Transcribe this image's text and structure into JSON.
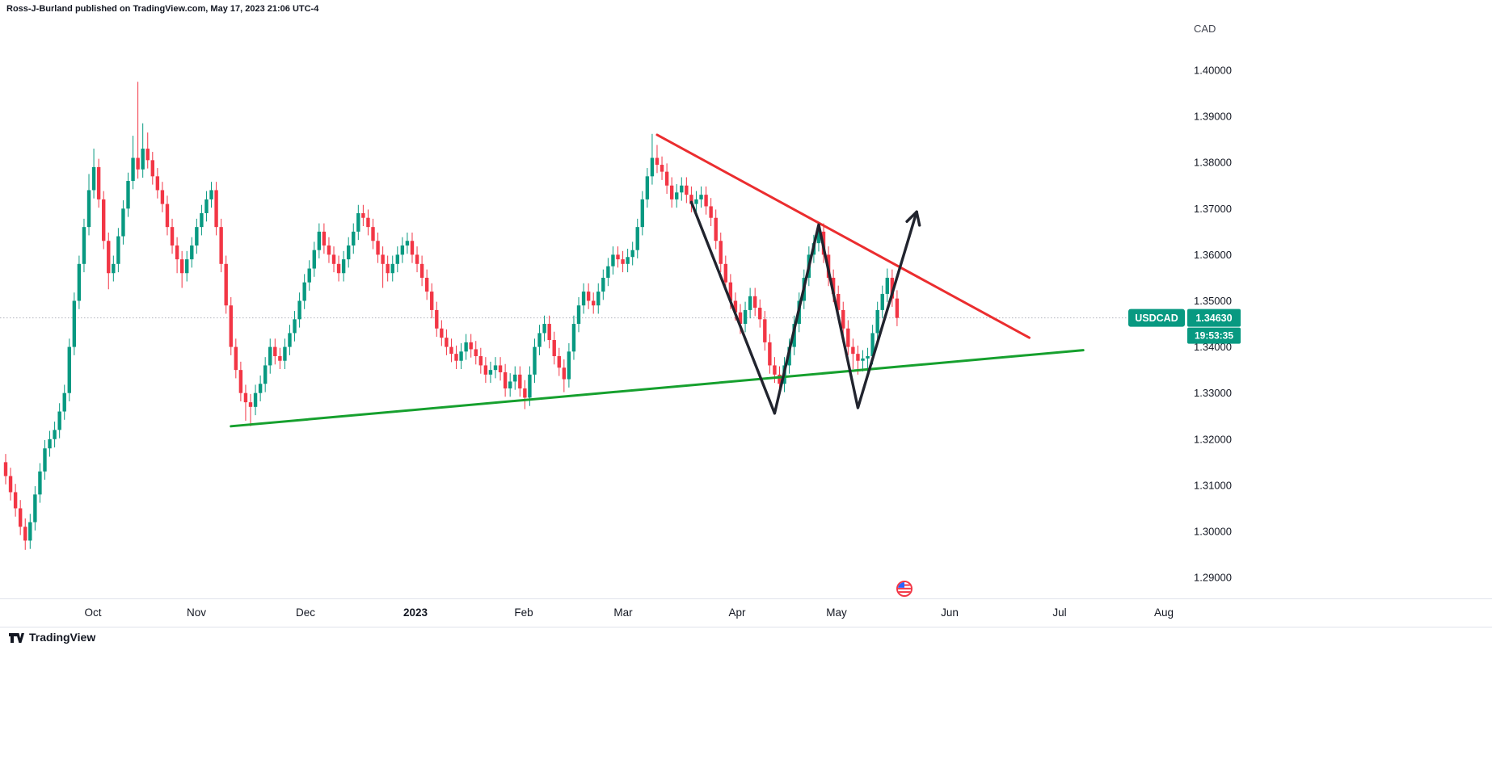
{
  "header": {
    "attribution": "Ross-J-Burland published on TradingView.com, May 17, 2023 21:06 UTC-4"
  },
  "footer": {
    "brand": "TradingView"
  },
  "price_scale": {
    "currency_label": "CAD",
    "ticks": [
      "1.40000",
      "1.39000",
      "1.38000",
      "1.37000",
      "1.36000",
      "1.35000",
      "1.34000",
      "1.33000",
      "1.32000",
      "1.31000",
      "1.30000",
      "1.29000"
    ]
  },
  "time_scale": {
    "labels": [
      {
        "label": "Oct"
      },
      {
        "label": "Nov"
      },
      {
        "label": "Dec"
      },
      {
        "label": "2023",
        "emphasis": true
      },
      {
        "label": "Feb"
      },
      {
        "label": "Mar"
      },
      {
        "label": "Apr"
      },
      {
        "label": "May"
      },
      {
        "label": "Jun"
      },
      {
        "label": "Jul"
      },
      {
        "label": "Aug"
      }
    ]
  },
  "price_label": {
    "symbol": "USDCAD",
    "price": "1.34630",
    "countdown": "19:53:35",
    "color": "#089981"
  },
  "chart_data": {
    "type": "candlestick",
    "symbol": "USDCAD",
    "quote_currency": "CAD",
    "current_price": 1.3463,
    "ylim": [
      1.2854,
      1.4103
    ],
    "y_tick_step": 0.01,
    "grid": false,
    "up_color": "#089981",
    "down_color": "#f23645",
    "candles": [
      [
        1.315,
        1.3168,
        1.3102,
        1.312
      ],
      [
        1.312,
        1.3138,
        1.3067,
        1.3085
      ],
      [
        1.3085,
        1.3103,
        1.3032,
        1.305
      ],
      [
        1.305,
        1.3068,
        1.2992,
        1.301
      ],
      [
        1.301,
        1.3028,
        1.296,
        1.298
      ],
      [
        1.298,
        1.3038,
        1.2962,
        1.302
      ],
      [
        1.302,
        1.3098,
        1.3002,
        1.308
      ],
      [
        1.308,
        1.3148,
        1.3062,
        1.313
      ],
      [
        1.313,
        1.3198,
        1.3112,
        1.318
      ],
      [
        1.318,
        1.3218,
        1.3162,
        1.32
      ],
      [
        1.32,
        1.3238,
        1.3182,
        1.322
      ],
      [
        1.322,
        1.3278,
        1.3202,
        1.326
      ],
      [
        1.326,
        1.3318,
        1.3242,
        1.33
      ],
      [
        1.33,
        1.3418,
        1.3282,
        1.34
      ],
      [
        1.34,
        1.3518,
        1.3382,
        1.35
      ],
      [
        1.35,
        1.3598,
        1.3482,
        1.358
      ],
      [
        1.358,
        1.3678,
        1.3562,
        1.366
      ],
      [
        1.366,
        1.3775,
        1.3642,
        1.374
      ],
      [
        1.374,
        1.383,
        1.3722,
        1.379
      ],
      [
        1.379,
        1.3808,
        1.3702,
        1.372
      ],
      [
        1.372,
        1.3738,
        1.3612,
        1.363
      ],
      [
        1.363,
        1.3648,
        1.3525,
        1.356
      ],
      [
        1.356,
        1.3598,
        1.3542,
        1.358
      ],
      [
        1.358,
        1.3658,
        1.3562,
        1.364
      ],
      [
        1.364,
        1.3718,
        1.3622,
        1.37
      ],
      [
        1.37,
        1.3778,
        1.3682,
        1.376
      ],
      [
        1.376,
        1.3858,
        1.3742,
        1.381
      ],
      [
        1.381,
        1.3975,
        1.3765,
        1.3785
      ],
      [
        1.3785,
        1.3885,
        1.3767,
        1.383
      ],
      [
        1.383,
        1.3865,
        1.3787,
        1.3805
      ],
      [
        1.3805,
        1.3823,
        1.3752,
        1.377
      ],
      [
        1.377,
        1.3788,
        1.3722,
        1.374
      ],
      [
        1.374,
        1.3758,
        1.3692,
        1.371
      ],
      [
        1.371,
        1.3728,
        1.3642,
        1.366
      ],
      [
        1.366,
        1.3678,
        1.3602,
        1.362
      ],
      [
        1.362,
        1.3638,
        1.356,
        1.359
      ],
      [
        1.359,
        1.3608,
        1.3528,
        1.356
      ],
      [
        1.356,
        1.3608,
        1.3542,
        1.359
      ],
      [
        1.359,
        1.3638,
        1.3572,
        1.362
      ],
      [
        1.362,
        1.3678,
        1.3602,
        1.366
      ],
      [
        1.366,
        1.3708,
        1.3642,
        1.369
      ],
      [
        1.369,
        1.3738,
        1.3672,
        1.372
      ],
      [
        1.372,
        1.3758,
        1.3702,
        1.374
      ],
      [
        1.374,
        1.3758,
        1.3642,
        1.366
      ],
      [
        1.366,
        1.3678,
        1.3562,
        1.358
      ],
      [
        1.358,
        1.3598,
        1.3472,
        1.349
      ],
      [
        1.349,
        1.3508,
        1.3382,
        1.34
      ],
      [
        1.34,
        1.3418,
        1.3332,
        1.335
      ],
      [
        1.335,
        1.3368,
        1.3282,
        1.33
      ],
      [
        1.33,
        1.3318,
        1.324,
        1.328
      ],
      [
        1.328,
        1.3298,
        1.3228,
        1.327
      ],
      [
        1.327,
        1.3318,
        1.3252,
        1.33
      ],
      [
        1.33,
        1.3338,
        1.3282,
        1.332
      ],
      [
        1.332,
        1.3378,
        1.3302,
        1.336
      ],
      [
        1.336,
        1.3418,
        1.3342,
        1.34
      ],
      [
        1.34,
        1.3418,
        1.3362,
        1.338
      ],
      [
        1.338,
        1.3398,
        1.3352,
        1.337
      ],
      [
        1.337,
        1.3418,
        1.3352,
        1.34
      ],
      [
        1.34,
        1.3448,
        1.3382,
        1.343
      ],
      [
        1.343,
        1.3478,
        1.3412,
        1.346
      ],
      [
        1.346,
        1.3518,
        1.3442,
        1.35
      ],
      [
        1.35,
        1.3558,
        1.3482,
        1.354
      ],
      [
        1.354,
        1.3588,
        1.3522,
        1.357
      ],
      [
        1.357,
        1.3628,
        1.3552,
        1.361
      ],
      [
        1.361,
        1.3668,
        1.3592,
        1.365
      ],
      [
        1.365,
        1.3668,
        1.3602,
        1.362
      ],
      [
        1.362,
        1.3638,
        1.3582,
        1.36
      ],
      [
        1.36,
        1.3618,
        1.3562,
        1.358
      ],
      [
        1.358,
        1.3598,
        1.3542,
        1.356
      ],
      [
        1.356,
        1.3608,
        1.3542,
        1.359
      ],
      [
        1.359,
        1.3638,
        1.3572,
        1.362
      ],
      [
        1.362,
        1.3668,
        1.3602,
        1.365
      ],
      [
        1.365,
        1.3708,
        1.3632,
        1.369
      ],
      [
        1.369,
        1.3708,
        1.3662,
        1.368
      ],
      [
        1.368,
        1.3698,
        1.3642,
        1.366
      ],
      [
        1.366,
        1.3678,
        1.3612,
        1.363
      ],
      [
        1.363,
        1.3648,
        1.3582,
        1.36
      ],
      [
        1.36,
        1.3618,
        1.3528,
        1.358
      ],
      [
        1.358,
        1.3598,
        1.3542,
        1.356
      ],
      [
        1.356,
        1.3598,
        1.3542,
        1.358
      ],
      [
        1.358,
        1.3618,
        1.3562,
        1.36
      ],
      [
        1.36,
        1.3638,
        1.3582,
        1.362
      ],
      [
        1.362,
        1.3648,
        1.3602,
        1.363
      ],
      [
        1.363,
        1.3648,
        1.3582,
        1.36
      ],
      [
        1.36,
        1.3618,
        1.3562,
        1.358
      ],
      [
        1.358,
        1.3598,
        1.3532,
        1.355
      ],
      [
        1.355,
        1.3568,
        1.3502,
        1.352
      ],
      [
        1.352,
        1.3538,
        1.3462,
        1.348
      ],
      [
        1.348,
        1.3498,
        1.3422,
        1.344
      ],
      [
        1.344,
        1.3458,
        1.3402,
        1.342
      ],
      [
        1.342,
        1.3438,
        1.3382,
        1.34
      ],
      [
        1.34,
        1.3418,
        1.3367,
        1.3385
      ],
      [
        1.3385,
        1.3403,
        1.3352,
        1.337
      ],
      [
        1.337,
        1.3408,
        1.3352,
        1.339
      ],
      [
        1.339,
        1.3428,
        1.3372,
        1.341
      ],
      [
        1.341,
        1.3428,
        1.3377,
        1.3395
      ],
      [
        1.3395,
        1.3413,
        1.3362,
        1.338
      ],
      [
        1.338,
        1.3398,
        1.3342,
        1.336
      ],
      [
        1.336,
        1.3378,
        1.3322,
        1.334
      ],
      [
        1.334,
        1.3368,
        1.3322,
        1.335
      ],
      [
        1.335,
        1.3378,
        1.3332,
        1.336
      ],
      [
        1.336,
        1.3378,
        1.3327,
        1.3345
      ],
      [
        1.3345,
        1.3363,
        1.3292,
        1.331
      ],
      [
        1.331,
        1.3343,
        1.3292,
        1.3325
      ],
      [
        1.3325,
        1.3358,
        1.3307,
        1.334
      ],
      [
        1.334,
        1.3358,
        1.3292,
        1.331
      ],
      [
        1.331,
        1.3328,
        1.3265,
        1.329
      ],
      [
        1.329,
        1.3358,
        1.3272,
        1.334
      ],
      [
        1.334,
        1.3418,
        1.3322,
        1.34
      ],
      [
        1.34,
        1.3448,
        1.3382,
        1.343
      ],
      [
        1.343,
        1.3468,
        1.3412,
        1.345
      ],
      [
        1.345,
        1.3468,
        1.3397,
        1.3415
      ],
      [
        1.3415,
        1.3433,
        1.3362,
        1.338
      ],
      [
        1.338,
        1.3398,
        1.3337,
        1.3355
      ],
      [
        1.3355,
        1.3373,
        1.3302,
        1.333
      ],
      [
        1.333,
        1.3408,
        1.3312,
        1.339
      ],
      [
        1.339,
        1.3468,
        1.3372,
        1.345
      ],
      [
        1.345,
        1.3508,
        1.3432,
        1.349
      ],
      [
        1.349,
        1.3538,
        1.3472,
        1.352
      ],
      [
        1.352,
        1.3538,
        1.3482,
        1.35
      ],
      [
        1.35,
        1.3518,
        1.3472,
        1.349
      ],
      [
        1.349,
        1.3538,
        1.3472,
        1.352
      ],
      [
        1.352,
        1.3568,
        1.3502,
        1.355
      ],
      [
        1.355,
        1.3593,
        1.3532,
        1.3575
      ],
      [
        1.3575,
        1.3618,
        1.3557,
        1.36
      ],
      [
        1.36,
        1.3618,
        1.3572,
        1.359
      ],
      [
        1.359,
        1.3608,
        1.3562,
        1.358
      ],
      [
        1.358,
        1.3613,
        1.3562,
        1.3595
      ],
      [
        1.3595,
        1.3628,
        1.3577,
        1.361
      ],
      [
        1.361,
        1.3678,
        1.3592,
        1.366
      ],
      [
        1.366,
        1.3738,
        1.3642,
        1.372
      ],
      [
        1.372,
        1.3788,
        1.3702,
        1.377
      ],
      [
        1.377,
        1.3862,
        1.3752,
        1.381
      ],
      [
        1.381,
        1.3838,
        1.3777,
        1.3795
      ],
      [
        1.3795,
        1.3813,
        1.3762,
        1.378
      ],
      [
        1.378,
        1.3798,
        1.3732,
        1.375
      ],
      [
        1.375,
        1.3768,
        1.3702,
        1.372
      ],
      [
        1.372,
        1.3753,
        1.3702,
        1.3735
      ],
      [
        1.3735,
        1.3768,
        1.3717,
        1.375
      ],
      [
        1.375,
        1.3768,
        1.3712,
        1.373
      ],
      [
        1.373,
        1.3748,
        1.3692,
        1.371
      ],
      [
        1.371,
        1.3738,
        1.3692,
        1.372
      ],
      [
        1.372,
        1.3748,
        1.3702,
        1.373
      ],
      [
        1.373,
        1.3748,
        1.3687,
        1.3705
      ],
      [
        1.3705,
        1.3723,
        1.3662,
        1.368
      ],
      [
        1.368,
        1.3698,
        1.3612,
        1.363
      ],
      [
        1.363,
        1.3648,
        1.3562,
        1.358
      ],
      [
        1.358,
        1.3598,
        1.3522,
        1.354
      ],
      [
        1.354,
        1.3558,
        1.3482,
        1.35
      ],
      [
        1.35,
        1.3518,
        1.3457,
        1.3475
      ],
      [
        1.3475,
        1.3493,
        1.3428,
        1.345
      ],
      [
        1.345,
        1.3498,
        1.3432,
        1.348
      ],
      [
        1.348,
        1.3528,
        1.3462,
        1.351
      ],
      [
        1.351,
        1.3528,
        1.3467,
        1.3485
      ],
      [
        1.3485,
        1.3503,
        1.3442,
        1.346
      ],
      [
        1.346,
        1.3478,
        1.3392,
        1.341
      ],
      [
        1.341,
        1.3428,
        1.3342,
        1.336
      ],
      [
        1.336,
        1.3378,
        1.3322,
        1.334
      ],
      [
        1.334,
        1.3358,
        1.3308,
        1.332
      ],
      [
        1.332,
        1.3378,
        1.3302,
        1.336
      ],
      [
        1.336,
        1.3418,
        1.3342,
        1.34
      ],
      [
        1.34,
        1.3468,
        1.3382,
        1.345
      ],
      [
        1.345,
        1.3518,
        1.3432,
        1.35
      ],
      [
        1.35,
        1.3568,
        1.3482,
        1.355
      ],
      [
        1.355,
        1.3618,
        1.3532,
        1.36
      ],
      [
        1.36,
        1.3643,
        1.3582,
        1.3625
      ],
      [
        1.3625,
        1.367,
        1.3607,
        1.365
      ],
      [
        1.365,
        1.3668,
        1.3582,
        1.36
      ],
      [
        1.36,
        1.3618,
        1.3532,
        1.355
      ],
      [
        1.355,
        1.3568,
        1.3497,
        1.3515
      ],
      [
        1.3515,
        1.3533,
        1.3462,
        1.348
      ],
      [
        1.348,
        1.3498,
        1.3422,
        1.344
      ],
      [
        1.344,
        1.3458,
        1.3382,
        1.34
      ],
      [
        1.34,
        1.3418,
        1.3352,
        1.3385
      ],
      [
        1.3385,
        1.3403,
        1.334,
        1.337
      ],
      [
        1.337,
        1.3393,
        1.3347,
        1.3375
      ],
      [
        1.3375,
        1.3398,
        1.3345,
        1.338
      ],
      [
        1.338,
        1.3448,
        1.3362,
        1.343
      ],
      [
        1.343,
        1.3498,
        1.3412,
        1.348
      ],
      [
        1.348,
        1.3533,
        1.3462,
        1.3515
      ],
      [
        1.3515,
        1.357,
        1.3497,
        1.355
      ],
      [
        1.355,
        1.3568,
        1.3487,
        1.3505
      ],
      [
        1.3505,
        1.3523,
        1.3445,
        1.3463
      ]
    ],
    "annotations": {
      "red_trendline": {
        "color": "#eb2d2f",
        "points": [
          [
            133,
            1.386
          ],
          [
            209,
            1.342
          ]
        ]
      },
      "green_trendline": {
        "color": "#16a02e",
        "points": [
          [
            46,
            1.3228
          ],
          [
            220,
            1.3393
          ]
        ]
      },
      "zigzag_arrow": {
        "color": "#21242e",
        "arrowhead": true,
        "points": [
          [
            140,
            1.3714
          ],
          [
            157,
            1.3256
          ],
          [
            166,
            1.3665
          ],
          [
            174,
            1.3268
          ],
          [
            186,
            1.3693
          ]
        ]
      }
    }
  }
}
